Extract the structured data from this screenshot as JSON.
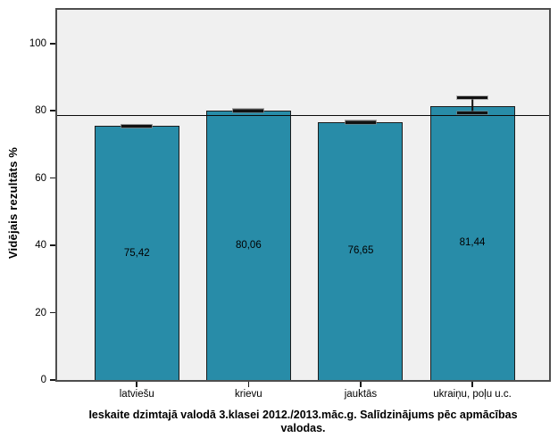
{
  "chart_data": {
    "type": "bar",
    "title": "Ieskaite dzimtajā valodā 3.klasei 2012./2013.māc.g. Salīdzinājums pēc apmācības valodas.",
    "ylabel": "Vidējais rezultāts %",
    "xlabel": "",
    "categories": [
      "latviešu",
      "krievu",
      "jauktās",
      "ukraiņu, poļu u.c."
    ],
    "values": [
      75.42,
      80.06,
      76.65,
      81.44
    ],
    "value_labels": [
      "75,42",
      "80,06",
      "76,65",
      "81,44"
    ],
    "error_ranges": [
      [
        75.0,
        75.9
      ],
      [
        79.5,
        80.6
      ],
      [
        76.1,
        77.2
      ],
      [
        79.0,
        84.2
      ]
    ],
    "reference_line": 78.6,
    "yticks": [
      0,
      20,
      40,
      60,
      80,
      100
    ],
    "ylim": [
      0,
      110
    ],
    "grid": false,
    "legend": null,
    "colors": {
      "bar_fill": "#288CA8",
      "bar_border": "#1C1C1C",
      "plot_background": "#F0F0F0",
      "frame_border": "#4E4E4E",
      "reference_line": "#0A0A0A",
      "page_background": "#FFFFFF",
      "text": "#000000"
    }
  }
}
